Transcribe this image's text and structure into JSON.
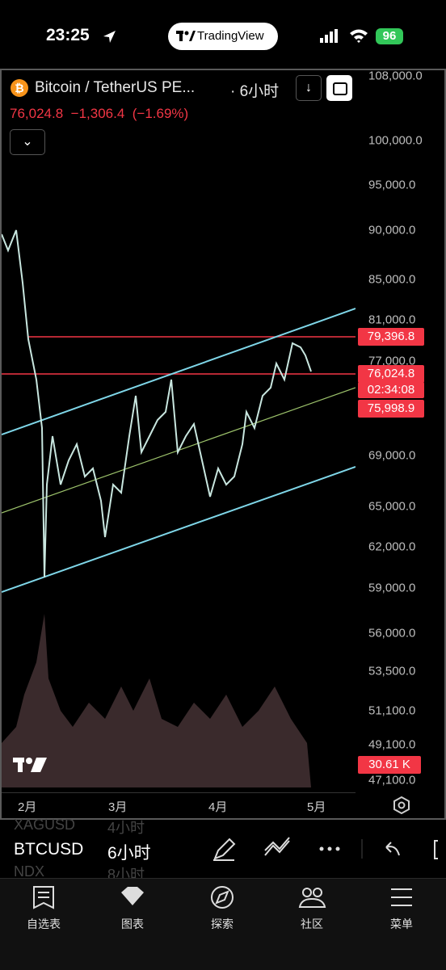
{
  "status_bar": {
    "time": "23:25",
    "app": "TradingView",
    "battery": "96"
  },
  "chart_header": {
    "symbol": "Bitcoin / TetherUS PE...",
    "interval": "· 6小时",
    "last": "76,024.8",
    "change": "−1,306.4",
    "change_pct": "(−1.69%)"
  },
  "price_axis": {
    "labels": [
      "108,000.0",
      "100,000.0",
      "95,000.0",
      "90,000.0",
      "85,000.0",
      "81,000.0",
      "77,000.0",
      "69,000.0",
      "65,000.0",
      "62,000.0",
      "59,000.0",
      "56,000.0",
      "53,500.0",
      "51,100.0",
      "49,100.0",
      "47,100.0"
    ],
    "badges": [
      "79,396.8",
      "76,024.8",
      "02:34:08",
      "75,998.9",
      "30.61 K"
    ]
  },
  "time_axis": {
    "labels": [
      "2月",
      "3月",
      "4月",
      "5月"
    ]
  },
  "symbol_list": [
    {
      "symbol": "XAGUSD",
      "interval": "4小时"
    },
    {
      "symbol": "BTCUSD",
      "interval": "6小时"
    },
    {
      "symbol": "NDX",
      "interval": "8小时"
    }
  ],
  "nav": [
    "自选表",
    "图表",
    "探索",
    "社区",
    "菜单"
  ]
}
